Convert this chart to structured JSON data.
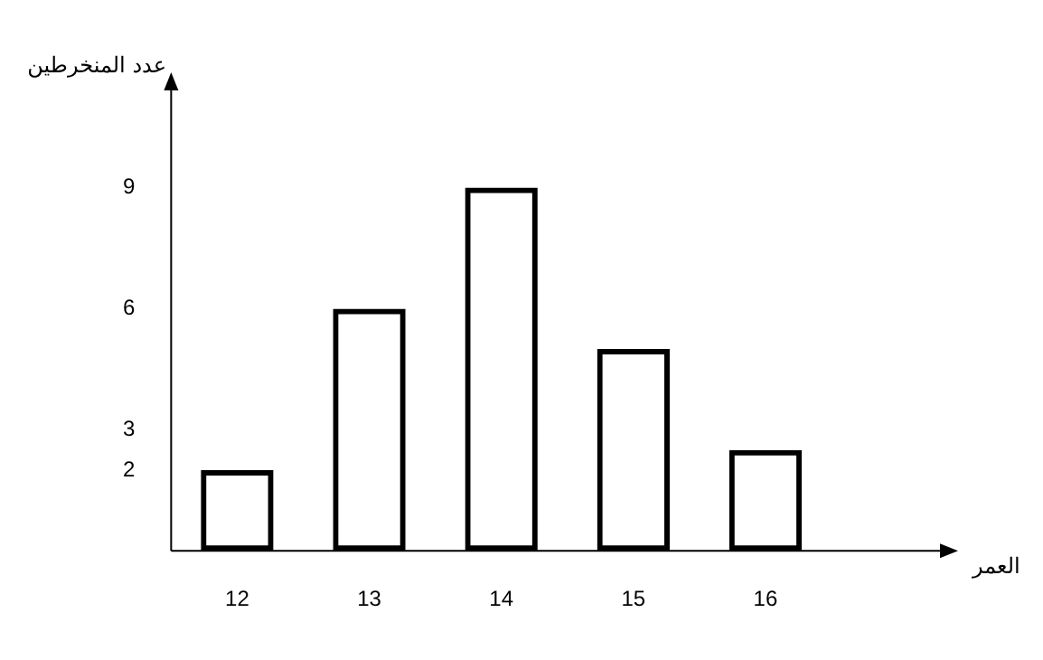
{
  "chart_data": {
    "type": "bar",
    "xlabel": "العمر",
    "ylabel": "عدد المنخرطين",
    "categories": [
      "12",
      "13",
      "14",
      "15",
      "16"
    ],
    "values": [
      2,
      6,
      9,
      5,
      2.5
    ],
    "color": "#000000",
    "ylim": [
      0,
      11.5
    ],
    "yticks": [
      2,
      3,
      6,
      9
    ],
    "grid": false,
    "legend": false
  }
}
